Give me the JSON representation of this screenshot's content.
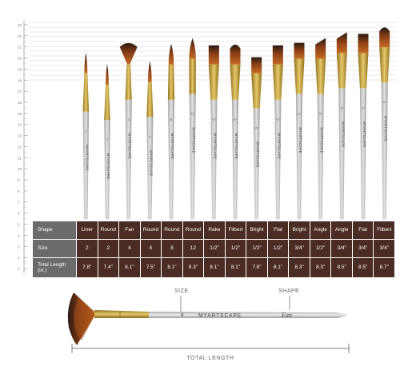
{
  "ruler": {
    "ticks": [
      "1",
      "2",
      "3",
      "4",
      "5",
      "6",
      "7",
      "8",
      "9",
      "10",
      "11",
      "12",
      "13",
      "14",
      "15",
      "16",
      "17",
      "18",
      "19",
      "20",
      "21",
      "22",
      "23"
    ]
  },
  "brand": "MYARTSCAPE",
  "table": {
    "headers": {
      "shape": "Shape",
      "size": "Size",
      "length": "Total Length (in.)"
    },
    "brushes": [
      {
        "shape": "Liner",
        "size": "2",
        "length": "7.8\"",
        "ferrule_label": "2"
      },
      {
        "shape": "Round",
        "size": "2",
        "length": "7.4\"",
        "ferrule_label": "2"
      },
      {
        "shape": "Fan",
        "size": "4",
        "length": "8.1\"",
        "ferrule_label": "4"
      },
      {
        "shape": "Round",
        "size": "4",
        "length": "7.5\"",
        "ferrule_label": "4"
      },
      {
        "shape": "Round",
        "size": "8",
        "length": "8.1\"",
        "ferrule_label": "8"
      },
      {
        "shape": "Round",
        "size": "12",
        "length": "8.3\"",
        "ferrule_label": "12"
      },
      {
        "shape": "Rake",
        "size": "1/2\"",
        "length": "8.1\"",
        "ferrule_label": "½\""
      },
      {
        "shape": "Filbert",
        "size": "1/2\"",
        "length": "8.1\"",
        "ferrule_label": "½\""
      },
      {
        "shape": "Bright",
        "size": "1/2\"",
        "length": "7.8\"",
        "ferrule_label": "½\""
      },
      {
        "shape": "Flat",
        "size": "1/2\"",
        "length": "8.1\"",
        "ferrule_label": "½\""
      },
      {
        "shape": "Bright",
        "size": "3/4\"",
        "length": "8.3\"",
        "ferrule_label": "¾\""
      },
      {
        "shape": "Angle",
        "size": "1/2\"",
        "length": "8.3\"",
        "ferrule_label": "½\""
      },
      {
        "shape": "Angle",
        "size": "3/4\"",
        "length": "8.5\"",
        "ferrule_label": "¾\""
      },
      {
        "shape": "Flat",
        "size": "3/4\"",
        "length": "8.5\"",
        "ferrule_label": "¾\""
      },
      {
        "shape": "Filbert",
        "size": "3/4\"",
        "length": "8.7\"",
        "ferrule_label": "¾\""
      }
    ]
  },
  "hero": {
    "size_label": "SIZE",
    "shape_label": "SHAPE",
    "length_label": "TOTAL LENGTH",
    "brand": "MYARTSCAPE",
    "script": "Fan",
    "ferrule_label": "4"
  },
  "colors": {
    "table_header": "#6b6b6b",
    "table_value": "#4a2c24",
    "handle": "#c8c8c8",
    "ferrule": "#b8962e",
    "bristle_tip": "#3a2418",
    "bristle_base": "#b8551a"
  }
}
